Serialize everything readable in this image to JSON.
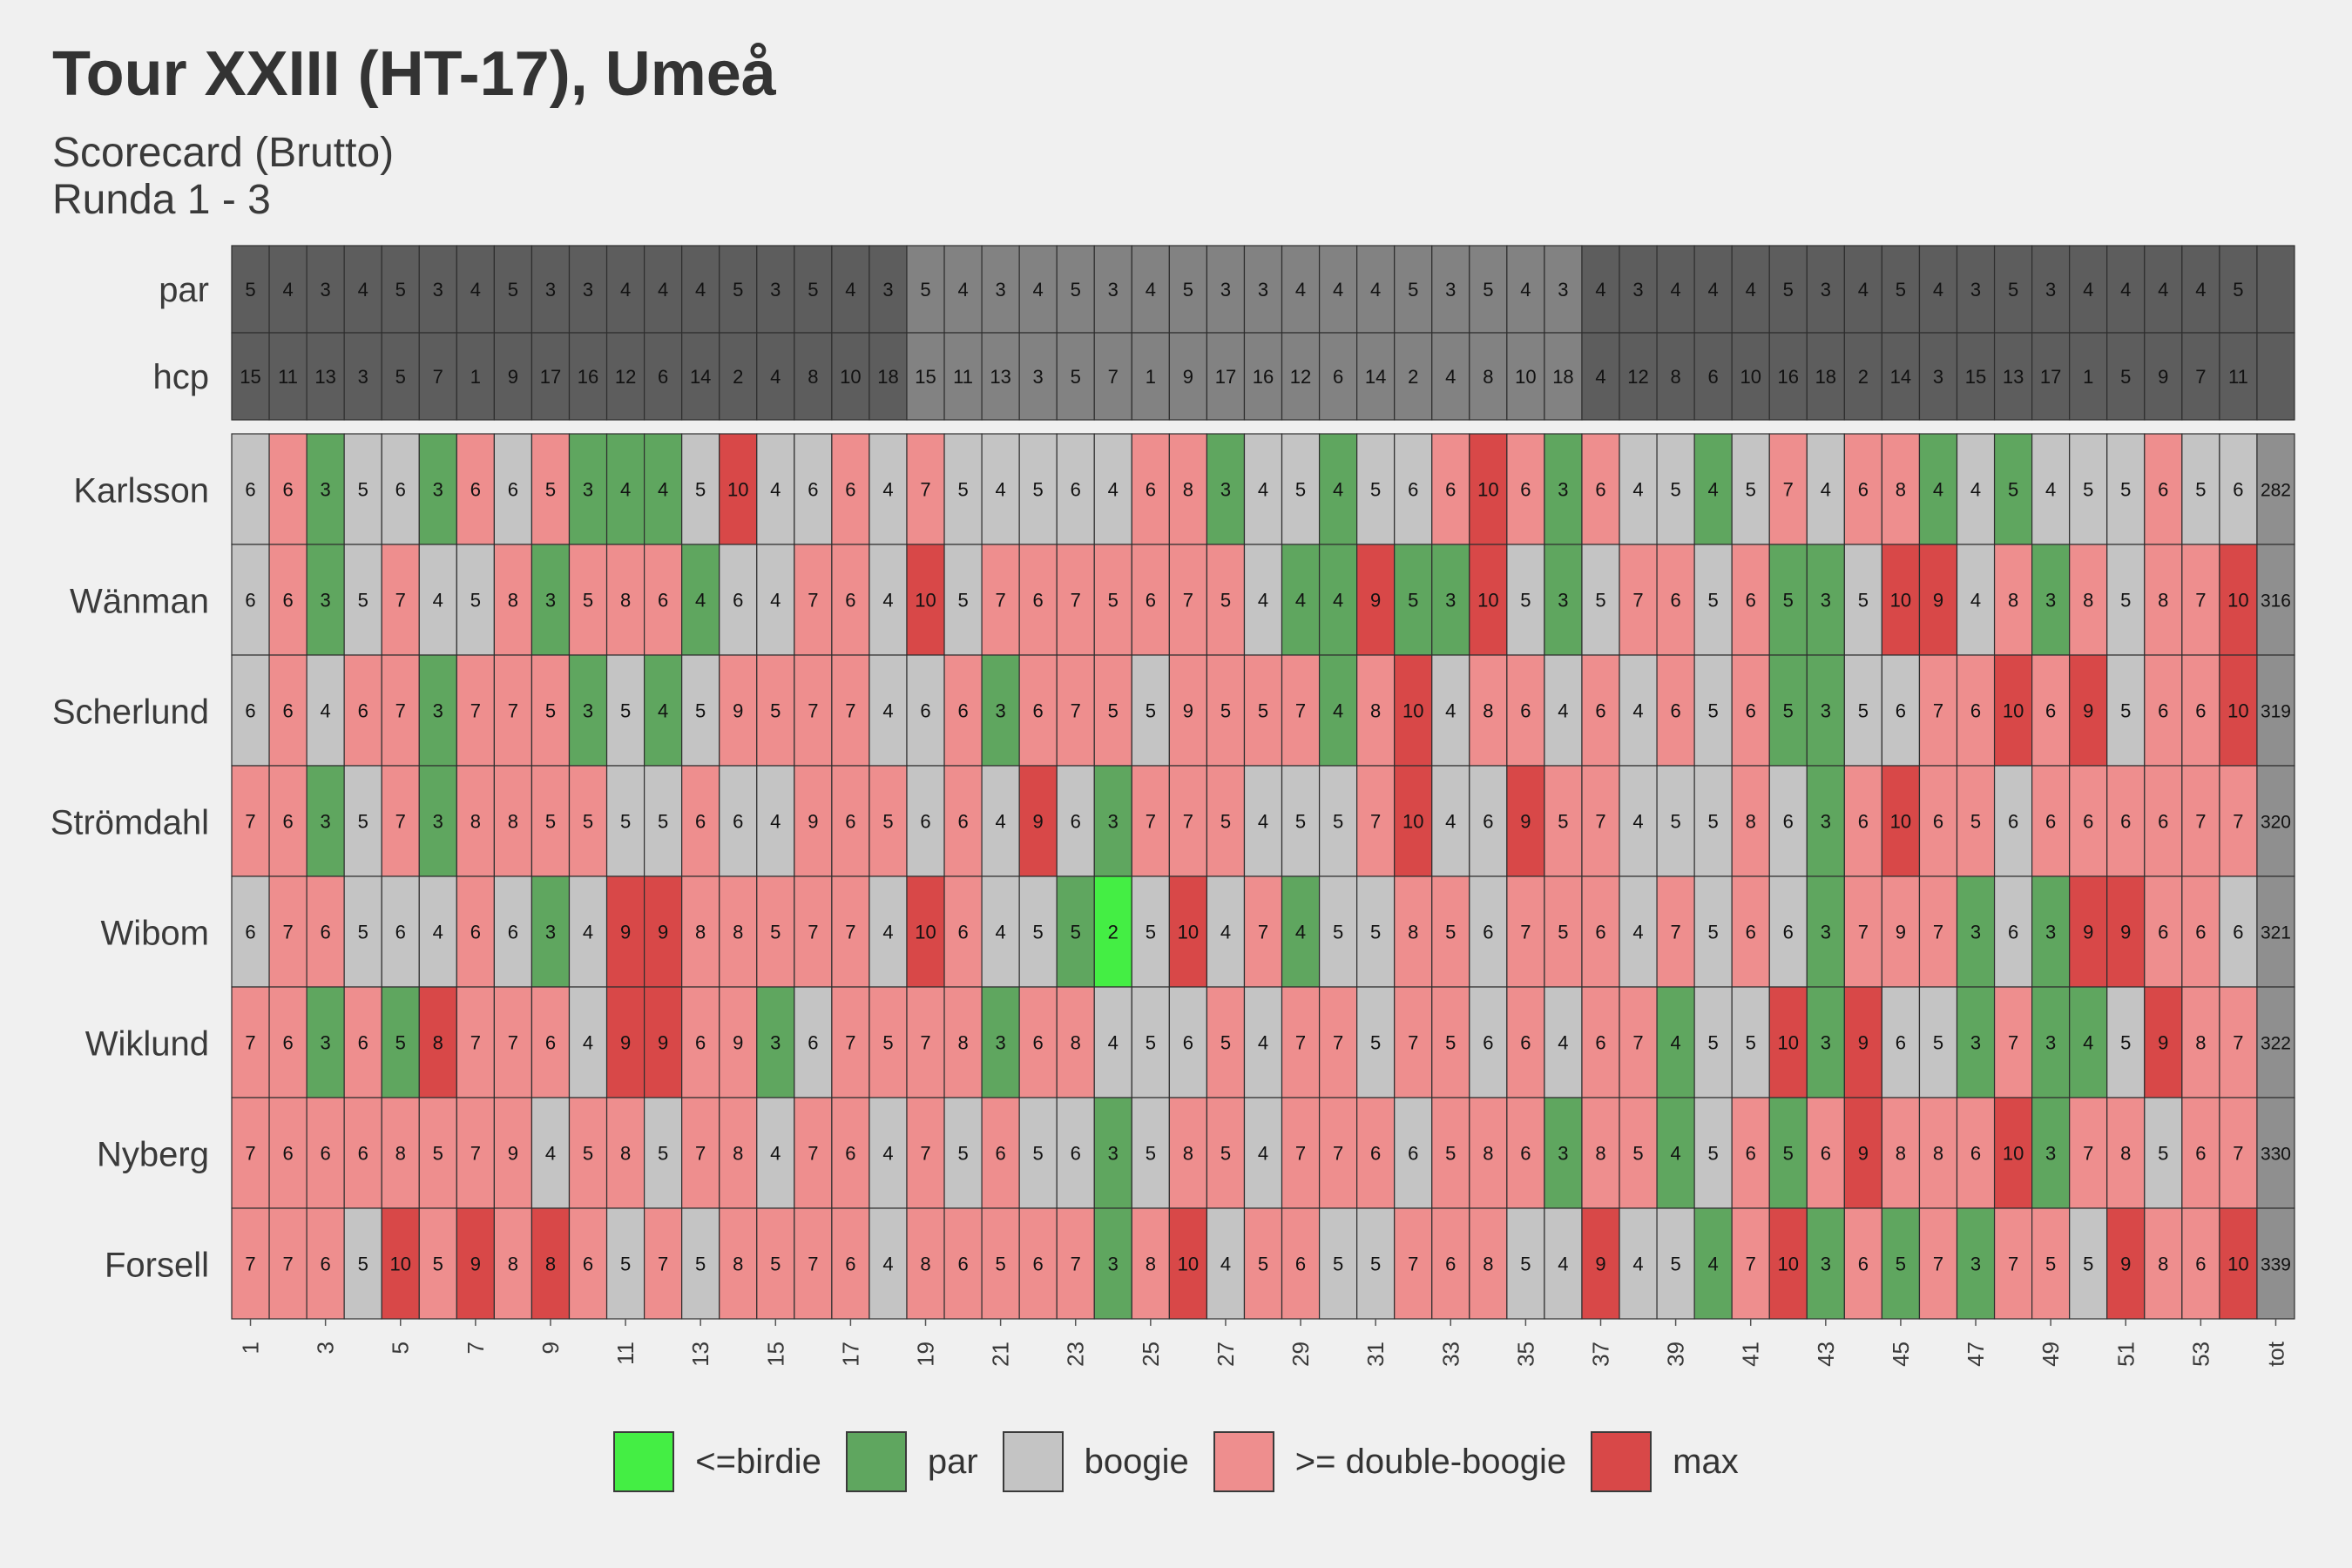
{
  "title": "Tour XXIII (HT-17), Umeå",
  "subtitle_line1": "Scorecard (Brutto)",
  "subtitle_line2": "Runda 1 - 3",
  "chart_data": {
    "type": "heatmap",
    "header_rows": [
      {
        "label": "par",
        "values": [
          5,
          4,
          3,
          4,
          5,
          3,
          4,
          5,
          3,
          3,
          4,
          4,
          4,
          5,
          3,
          5,
          4,
          3,
          5,
          4,
          3,
          4,
          5,
          3,
          4,
          5,
          3,
          3,
          4,
          4,
          4,
          5,
          3,
          5,
          4,
          3,
          4,
          3,
          4,
          4,
          4,
          5,
          3,
          4,
          5,
          4,
          3,
          5,
          3,
          4,
          4,
          4,
          4,
          5
        ]
      },
      {
        "label": "hcp",
        "values": [
          15,
          11,
          13,
          3,
          5,
          7,
          1,
          9,
          17,
          16,
          12,
          6,
          14,
          2,
          4,
          8,
          10,
          18,
          15,
          11,
          13,
          3,
          5,
          7,
          1,
          9,
          17,
          16,
          12,
          6,
          14,
          2,
          4,
          8,
          10,
          18,
          4,
          12,
          8,
          6,
          10,
          16,
          18,
          2,
          14,
          3,
          15,
          13,
          17,
          1,
          5,
          9,
          7,
          11
        ]
      }
    ],
    "round_breaks_after_holes": [
      18,
      36
    ],
    "players": [
      {
        "name": "Karlsson",
        "scores": [
          6,
          6,
          3,
          5,
          6,
          3,
          6,
          6,
          5,
          3,
          4,
          4,
          5,
          10,
          4,
          6,
          6,
          4,
          7,
          5,
          4,
          5,
          6,
          4,
          6,
          8,
          3,
          4,
          5,
          4,
          5,
          6,
          6,
          10,
          6,
          3,
          6,
          4,
          5,
          4,
          5,
          7,
          4,
          6,
          8,
          4,
          4,
          5,
          4,
          5,
          5,
          6,
          5,
          6
        ],
        "total": 282
      },
      {
        "name": "Wänman",
        "scores": [
          6,
          6,
          3,
          5,
          7,
          4,
          5,
          8,
          3,
          5,
          8,
          6,
          4,
          6,
          4,
          7,
          6,
          4,
          10,
          5,
          7,
          6,
          7,
          5,
          6,
          7,
          5,
          4,
          4,
          4,
          9,
          5,
          3,
          10,
          5,
          3,
          5,
          7,
          6,
          5,
          6,
          5,
          3,
          5,
          10,
          9,
          4,
          8,
          3,
          8,
          5,
          8,
          7,
          10
        ],
        "total": 316
      },
      {
        "name": "Scherlund",
        "scores": [
          6,
          6,
          4,
          6,
          7,
          3,
          7,
          7,
          5,
          3,
          5,
          4,
          5,
          9,
          5,
          7,
          7,
          4,
          6,
          6,
          3,
          6,
          7,
          5,
          5,
          9,
          5,
          5,
          7,
          4,
          8,
          10,
          4,
          8,
          6,
          4,
          6,
          4,
          6,
          5,
          6,
          5,
          3,
          5,
          6,
          7,
          6,
          10,
          6,
          9,
          5,
          6,
          6,
          10
        ],
        "total": 319
      },
      {
        "name": "Strömdahl",
        "scores": [
          7,
          6,
          3,
          5,
          7,
          3,
          8,
          8,
          5,
          5,
          5,
          5,
          6,
          6,
          4,
          9,
          6,
          5,
          6,
          6,
          4,
          9,
          6,
          3,
          7,
          7,
          5,
          4,
          5,
          5,
          7,
          10,
          4,
          6,
          9,
          5,
          7,
          4,
          5,
          5,
          8,
          6,
          3,
          6,
          10,
          6,
          5,
          6,
          6,
          6,
          6,
          6,
          7,
          7
        ],
        "total": 320
      },
      {
        "name": "Wibom",
        "scores": [
          6,
          7,
          6,
          5,
          6,
          4,
          6,
          6,
          3,
          4,
          9,
          9,
          8,
          8,
          5,
          7,
          7,
          4,
          10,
          6,
          4,
          5,
          5,
          2,
          5,
          10,
          4,
          7,
          4,
          5,
          5,
          8,
          5,
          6,
          7,
          5,
          6,
          4,
          7,
          5,
          6,
          6,
          3,
          7,
          9,
          7,
          3,
          6,
          3,
          9,
          9,
          6,
          6,
          6
        ],
        "total": 321
      },
      {
        "name": "Wiklund",
        "scores": [
          7,
          6,
          3,
          6,
          5,
          8,
          7,
          7,
          6,
          4,
          9,
          9,
          6,
          9,
          3,
          6,
          7,
          5,
          7,
          8,
          3,
          6,
          8,
          4,
          5,
          6,
          5,
          4,
          7,
          7,
          5,
          7,
          5,
          6,
          6,
          4,
          6,
          7,
          4,
          5,
          5,
          10,
          3,
          9,
          6,
          5,
          3,
          7,
          3,
          4,
          5,
          9,
          8,
          7
        ],
        "total": 322
      },
      {
        "name": "Nyberg",
        "scores": [
          7,
          6,
          6,
          6,
          8,
          5,
          7,
          9,
          4,
          5,
          8,
          5,
          7,
          8,
          4,
          7,
          6,
          4,
          7,
          5,
          6,
          5,
          6,
          3,
          5,
          8,
          5,
          4,
          7,
          7,
          6,
          6,
          5,
          8,
          6,
          3,
          8,
          5,
          4,
          5,
          6,
          5,
          6,
          9,
          8,
          8,
          6,
          10,
          3,
          7,
          8,
          5,
          6,
          7
        ],
        "total": 330
      },
      {
        "name": "Forsell",
        "scores": [
          7,
          7,
          6,
          5,
          10,
          5,
          9,
          8,
          8,
          6,
          5,
          7,
          5,
          8,
          5,
          7,
          6,
          4,
          8,
          6,
          5,
          6,
          7,
          3,
          8,
          10,
          4,
          5,
          6,
          5,
          5,
          7,
          6,
          8,
          5,
          4,
          9,
          4,
          5,
          4,
          7,
          10,
          3,
          6,
          5,
          7,
          3,
          7,
          5,
          5,
          9,
          8,
          6,
          10
        ],
        "total": 339
      }
    ],
    "x_tick_labels": [
      "1",
      "3",
      "5",
      "7",
      "9",
      "11",
      "13",
      "15",
      "17",
      "19",
      "21",
      "23",
      "25",
      "27",
      "29",
      "31",
      "33",
      "35",
      "37",
      "39",
      "41",
      "43",
      "45",
      "47",
      "49",
      "51",
      "53",
      "tot"
    ],
    "legend": [
      {
        "label": "<=birdie",
        "color": "#44ee44"
      },
      {
        "label": "par",
        "color": "#5fa65f"
      },
      {
        "label": "boogie",
        "color": "#c4c4c4"
      },
      {
        "label": ">= double-boogie",
        "color": "#ee8e8e"
      },
      {
        "label": "max",
        "color": "#d84848"
      }
    ],
    "header_colors": [
      "#5d5d5d",
      "#828282"
    ],
    "total_color": "#8f8f8f"
  }
}
